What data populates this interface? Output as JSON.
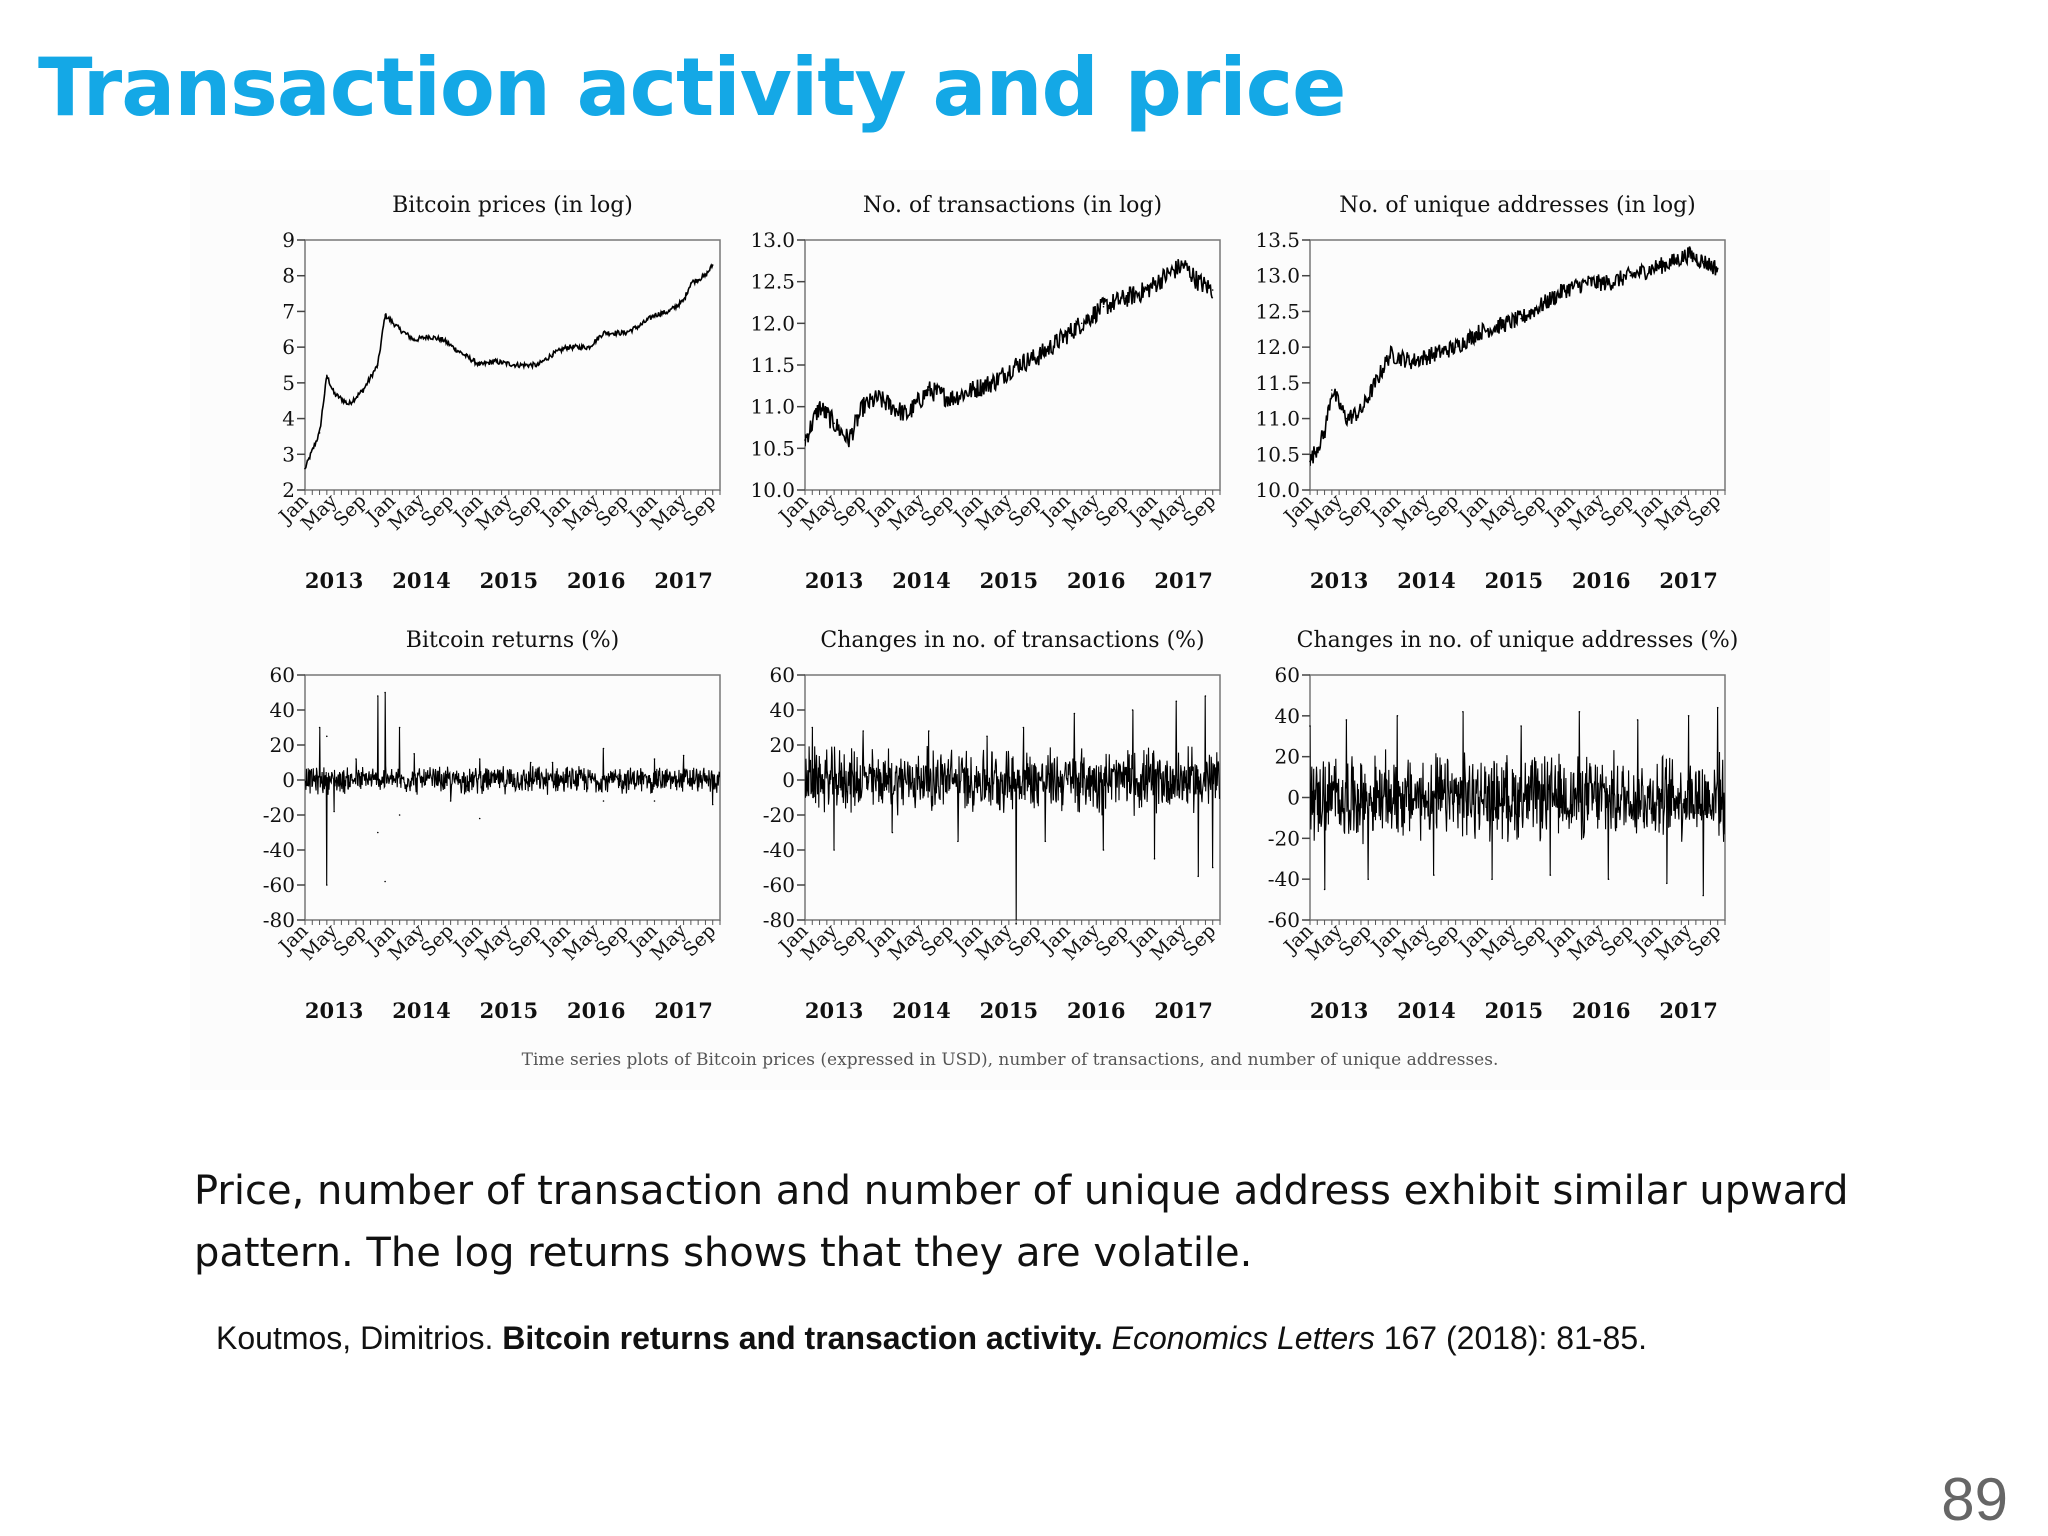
{
  "slide": {
    "title": "Transaction activity and price",
    "caption": "Time series plots of Bitcoin prices (expressed in USD), number of transactions, and number of unique addresses.",
    "body": "Price, number of transaction and number of unique address exhibit similar upward pattern. The log returns shows that they are volatile.",
    "citation": {
      "authors": "Koutmos, Dimitrios.",
      "paper": "Bitcoin returns and transaction activity.",
      "journal": "Economics Letters",
      "details": "167 (2018): 81-85."
    },
    "page_number": "89"
  },
  "chart_data": [
    {
      "type": "line",
      "title": "Bitcoin prices (in log)",
      "ylim": [
        2,
        9
      ],
      "yticks": [
        "2",
        "3",
        "4",
        "5",
        "6",
        "7",
        "8",
        "9"
      ],
      "x_month_labels": [
        "Jan",
        "May",
        "Sep",
        "Jan",
        "May",
        "Sep",
        "Jan",
        "May",
        "Sep",
        "Jan",
        "May",
        "Sep",
        "Jan",
        "May",
        "Sep"
      ],
      "x_year_labels": [
        "2013",
        "2014",
        "2015",
        "2016",
        "2017"
      ],
      "x_range": [
        "2013-01",
        "2017-10"
      ],
      "grid": false,
      "series": [
        {
          "x": [
            "2013-01",
            "2013-03",
            "2013-04",
            "2013-05",
            "2013-07",
            "2013-09",
            "2013-11",
            "2013-12",
            "2014-02",
            "2014-04",
            "2014-06",
            "2014-08",
            "2014-10",
            "2015-01",
            "2015-03",
            "2015-06",
            "2015-09",
            "2015-11",
            "2016-01",
            "2016-04",
            "2016-06",
            "2016-09",
            "2016-11",
            "2017-01",
            "2017-03",
            "2017-05",
            "2017-06",
            "2017-08",
            "2017-09"
          ],
          "values": [
            2.6,
            3.6,
            5.2,
            4.7,
            4.4,
            4.8,
            5.5,
            6.9,
            6.5,
            6.2,
            6.3,
            6.2,
            5.9,
            5.5,
            5.6,
            5.5,
            5.5,
            5.8,
            6.0,
            6.0,
            6.4,
            6.4,
            6.6,
            6.9,
            7.0,
            7.3,
            7.8,
            8.0,
            8.3
          ]
        }
      ]
    },
    {
      "type": "line",
      "title": "No. of transactions (in log)",
      "ylim": [
        10.0,
        13.0
      ],
      "yticks": [
        "10.0",
        "10.5",
        "11.0",
        "11.5",
        "12.0",
        "12.5",
        "13.0"
      ],
      "x_month_labels": [
        "Jan",
        "May",
        "Sep",
        "Jan",
        "May",
        "Sep",
        "Jan",
        "May",
        "Sep",
        "Jan",
        "May",
        "Sep",
        "Jan",
        "May",
        "Sep"
      ],
      "x_year_labels": [
        "2013",
        "2014",
        "2015",
        "2016",
        "2017"
      ],
      "x_range": [
        "2013-01",
        "2017-10"
      ],
      "grid": false,
      "series": [
        {
          "x": [
            "2013-01",
            "2013-03",
            "2013-05",
            "2013-07",
            "2013-09",
            "2013-11",
            "2014-01",
            "2014-03",
            "2014-06",
            "2014-09",
            "2014-12",
            "2015-03",
            "2015-06",
            "2015-09",
            "2015-12",
            "2016-03",
            "2016-06",
            "2016-09",
            "2016-12",
            "2017-03",
            "2017-05",
            "2017-07",
            "2017-09"
          ],
          "values": [
            10.6,
            11.0,
            10.8,
            10.6,
            11.0,
            11.1,
            11.0,
            10.9,
            11.2,
            11.1,
            11.2,
            11.3,
            11.5,
            11.6,
            11.8,
            12.0,
            12.2,
            12.3,
            12.4,
            12.6,
            12.7,
            12.5,
            12.4
          ]
        }
      ]
    },
    {
      "type": "line",
      "title": "No. of unique addresses (in log)",
      "ylim": [
        10.0,
        13.5
      ],
      "yticks": [
        "10.0",
        "10.5",
        "11.0",
        "11.5",
        "12.0",
        "12.5",
        "13.0",
        "13.5"
      ],
      "x_month_labels": [
        "Jan",
        "May",
        "Sep",
        "Jan",
        "May",
        "Sep",
        "Jan",
        "May",
        "Sep",
        "Jan",
        "May",
        "Sep",
        "Jan",
        "May",
        "Sep"
      ],
      "x_year_labels": [
        "2013",
        "2014",
        "2015",
        "2016",
        "2017"
      ],
      "x_range": [
        "2013-01",
        "2017-10"
      ],
      "grid": false,
      "series": [
        {
          "x": [
            "2013-01",
            "2013-03",
            "2013-04",
            "2013-06",
            "2013-08",
            "2013-10",
            "2013-12",
            "2014-03",
            "2014-06",
            "2014-09",
            "2014-12",
            "2015-03",
            "2015-06",
            "2015-09",
            "2015-12",
            "2016-03",
            "2016-06",
            "2016-09",
            "2016-12",
            "2017-03",
            "2017-05",
            "2017-07",
            "2017-09"
          ],
          "values": [
            10.4,
            10.8,
            11.4,
            11.0,
            11.1,
            11.5,
            11.9,
            11.8,
            11.9,
            12.0,
            12.2,
            12.3,
            12.4,
            12.6,
            12.8,
            12.9,
            12.9,
            13.0,
            13.1,
            13.2,
            13.3,
            13.2,
            13.1
          ]
        }
      ]
    },
    {
      "type": "line",
      "title": "Bitcoin returns (%)",
      "ylim": [
        -80,
        60
      ],
      "yticks": [
        "-80",
        "-60",
        "-40",
        "-20",
        "0",
        "20",
        "40",
        "60"
      ],
      "x_month_labels": [
        "Jan",
        "May",
        "Sep",
        "Jan",
        "May",
        "Sep",
        "Jan",
        "May",
        "Sep",
        "Jan",
        "May",
        "Sep",
        "Jan",
        "May",
        "Sep"
      ],
      "x_year_labels": [
        "2013",
        "2014",
        "2015",
        "2016",
        "2017"
      ],
      "x_range": [
        "2013-01",
        "2017-10"
      ],
      "grid": false,
      "series": [
        {
          "x": [
            "2013-03",
            "2013-04",
            "2013-04",
            "2013-05",
            "2013-08",
            "2013-11",
            "2013-11",
            "2013-12",
            "2013-12",
            "2014-02",
            "2014-02",
            "2014-04",
            "2014-09",
            "2015-01",
            "2015-01",
            "2015-08",
            "2015-11",
            "2016-06",
            "2016-06",
            "2017-01",
            "2017-01",
            "2017-05",
            "2017-09"
          ],
          "values": [
            30,
            -60,
            25,
            -18,
            12,
            48,
            -30,
            50,
            -58,
            30,
            -20,
            15,
            -12,
            12,
            -22,
            10,
            10,
            18,
            -12,
            12,
            -12,
            14,
            -14
          ]
        }
      ]
    },
    {
      "type": "line",
      "title": "Changes in no. of transactions (%)",
      "ylim": [
        -80,
        60
      ],
      "yticks": [
        "-80",
        "-60",
        "-40",
        "-20",
        "0",
        "20",
        "40",
        "60"
      ],
      "x_month_labels": [
        "Jan",
        "May",
        "Sep",
        "Jan",
        "May",
        "Sep",
        "Jan",
        "May",
        "Sep",
        "Jan",
        "May",
        "Sep",
        "Jan",
        "May",
        "Sep"
      ],
      "x_year_labels": [
        "2013",
        "2014",
        "2015",
        "2016",
        "2017"
      ],
      "x_range": [
        "2013-01",
        "2017-10"
      ],
      "grid": false,
      "series": [
        {
          "x": [
            "2013-02",
            "2013-05",
            "2013-09",
            "2014-01",
            "2014-06",
            "2014-10",
            "2015-02",
            "2015-06",
            "2015-07",
            "2015-10",
            "2016-02",
            "2016-06",
            "2016-10",
            "2017-01",
            "2017-04",
            "2017-07",
            "2017-08",
            "2017-09"
          ],
          "values": [
            30,
            -40,
            28,
            -30,
            28,
            -35,
            25,
            -82,
            30,
            -35,
            38,
            -40,
            40,
            -45,
            45,
            -55,
            48,
            -50
          ]
        }
      ]
    },
    {
      "type": "line",
      "title": "Changes in no. of unique addresses (%)",
      "ylim": [
        -60,
        60
      ],
      "yticks": [
        "-60",
        "-40",
        "-20",
        "0",
        "20",
        "40",
        "60"
      ],
      "x_month_labels": [
        "Jan",
        "May",
        "Sep",
        "Jan",
        "May",
        "Sep",
        "Jan",
        "May",
        "Sep",
        "Jan",
        "May",
        "Sep",
        "Jan",
        "May",
        "Sep"
      ],
      "x_year_labels": [
        "2013",
        "2014",
        "2015",
        "2016",
        "2017"
      ],
      "x_range": [
        "2013-01",
        "2017-10"
      ],
      "grid": false,
      "series": [
        {
          "x": [
            "2013-01",
            "2013-03",
            "2013-06",
            "2013-09",
            "2014-01",
            "2014-06",
            "2014-10",
            "2015-02",
            "2015-06",
            "2015-10",
            "2016-02",
            "2016-06",
            "2016-10",
            "2017-02",
            "2017-05",
            "2017-07",
            "2017-09"
          ],
          "values": [
            35,
            -45,
            38,
            -40,
            40,
            -38,
            42,
            -40,
            35,
            -38,
            42,
            -40,
            38,
            -42,
            40,
            -48,
            44
          ]
        }
      ]
    }
  ]
}
